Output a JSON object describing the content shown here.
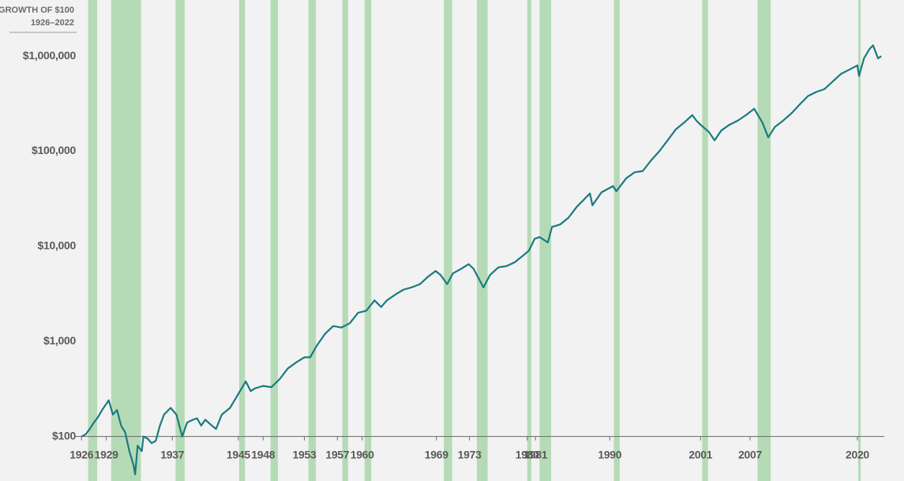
{
  "chart_data": {
    "type": "line",
    "title": "GROWTH OF $100",
    "subtitle": "1926–2022",
    "log_y": true,
    "color": "#1b7a80",
    "band_color": "#b5dbb6",
    "shaded_periods": [
      [
        1926.8,
        1927.9
      ],
      [
        1929.6,
        1933.2
      ],
      [
        1937.4,
        1938.5
      ],
      [
        1945.1,
        1945.8
      ],
      [
        1948.9,
        1949.8
      ],
      [
        1953.5,
        1954.4
      ],
      [
        1957.6,
        1958.3
      ],
      [
        1960.3,
        1961.1
      ],
      [
        1969.9,
        1970.9
      ],
      [
        1973.9,
        1975.2
      ],
      [
        1980.0,
        1980.5
      ],
      [
        1981.5,
        1982.9
      ],
      [
        1990.5,
        1991.2
      ],
      [
        2001.2,
        2001.9
      ],
      [
        2007.9,
        2009.5
      ],
      [
        2020.1,
        2020.4
      ]
    ],
    "x": [
      1926.0,
      1926.5,
      1927.0,
      1927.5,
      1928.0,
      1928.5,
      1929.0,
      1929.3,
      1929.8,
      1930.3,
      1930.8,
      1931.3,
      1931.8,
      1932.3,
      1932.5,
      1932.8,
      1933.3,
      1933.5,
      1934.0,
      1934.5,
      1935.0,
      1935.5,
      1936.0,
      1936.8,
      1937.5,
      1938.2,
      1938.8,
      1939.5,
      1940.0,
      1940.5,
      1941.0,
      1941.8,
      1942.3,
      1943.0,
      1944.0,
      1945.0,
      1945.9,
      1946.5,
      1947.0,
      1948.0,
      1949.0,
      1950.0,
      1951.0,
      1952.0,
      1953.0,
      1953.7,
      1954.5,
      1955.5,
      1956.5,
      1957.5,
      1958.5,
      1959.5,
      1960.5,
      1961.5,
      1962.3,
      1963.0,
      1964.0,
      1965.0,
      1966.0,
      1967.0,
      1968.0,
      1968.9,
      1969.5,
      1970.3,
      1971.0,
      1972.0,
      1972.9,
      1973.5,
      1974.7,
      1975.5,
      1976.5,
      1977.5,
      1978.5,
      1979.5,
      1980.2,
      1980.9,
      1981.5,
      1982.5,
      1983.0,
      1984.0,
      1985.0,
      1986.0,
      1987.6,
      1987.9,
      1989.0,
      1990.4,
      1990.8,
      1992.0,
      1993.0,
      1994.0,
      1995.0,
      1996.0,
      1997.0,
      1998.0,
      1999.0,
      2000.0,
      2000.5,
      2001.0,
      2002.0,
      2002.7,
      2003.5,
      2004.5,
      2005.5,
      2006.5,
      2007.5,
      2008.5,
      2009.2,
      2010.0,
      2011.0,
      2012.0,
      2013.0,
      2014.0,
      2015.0,
      2016.0,
      2017.0,
      2018.0,
      2019.0,
      2020.0,
      2020.2,
      2020.8,
      2021.5,
      2021.9,
      2022.5,
      2022.9
    ],
    "values": [
      100,
      105,
      120,
      140,
      160,
      190,
      220,
      240,
      170,
      190,
      130,
      110,
      70,
      50,
      40,
      80,
      70,
      100,
      95,
      85,
      90,
      130,
      170,
      200,
      170,
      100,
      140,
      150,
      155,
      130,
      150,
      130,
      120,
      170,
      200,
      280,
      380,
      300,
      320,
      340,
      330,
      400,
      520,
      600,
      680,
      680,
      900,
      1200,
      1450,
      1400,
      1550,
      2000,
      2100,
      2700,
      2300,
      2700,
      3100,
      3500,
      3700,
      4000,
      4800,
      5500,
      5000,
      4000,
      5200,
      5800,
      6500,
      5800,
      3700,
      5000,
      6000,
      6200,
      6800,
      8000,
      9000,
      12000,
      12500,
      11000,
      16000,
      17000,
      20000,
      26000,
      36000,
      27000,
      37000,
      43000,
      38000,
      52000,
      60000,
      62000,
      80000,
      100000,
      130000,
      170000,
      200000,
      240000,
      210000,
      190000,
      160000,
      130000,
      165000,
      190000,
      210000,
      240000,
      280000,
      200000,
      140000,
      180000,
      210000,
      250000,
      310000,
      380000,
      420000,
      450000,
      540000,
      650000,
      720000,
      800000,
      620000,
      950000,
      1200000,
      1300000,
      950000,
      1000000
    ],
    "xlim": [
      1925.5,
      2024.5
    ],
    "ylim": [
      34,
      3900000
    ],
    "yticks": [
      {
        "value": 100,
        "label": "$100"
      },
      {
        "value": 1000,
        "label": "$1,000"
      },
      {
        "value": 10000,
        "label": "$10,000"
      },
      {
        "value": 100000,
        "label": "$100,000"
      },
      {
        "value": 1000000,
        "label": "$1,000,000"
      }
    ],
    "xticks": [
      1926,
      1929,
      1937,
      1945,
      1948,
      1953,
      1957,
      1960,
      1969,
      1973,
      1980,
      1981,
      1990,
      2001,
      2007,
      2020
    ]
  }
}
